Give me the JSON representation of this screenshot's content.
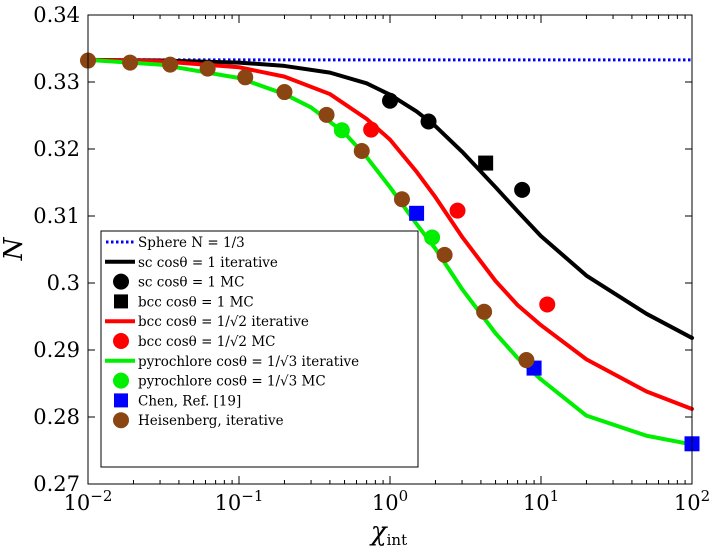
{
  "chart_data": {
    "type": "line",
    "xscale": "log",
    "xlim": [
      0.01,
      100
    ],
    "ylim": [
      0.27,
      0.34
    ],
    "xlabel": "χ",
    "xlabel_sub": "int",
    "ylabel": "N",
    "grid": false,
    "legend_position": "bottom-left",
    "x_ticks": [
      {
        "value": 0.01,
        "base": "10",
        "exp": "−2"
      },
      {
        "value": 0.1,
        "base": "10",
        "exp": "−1"
      },
      {
        "value": 1,
        "base": "10",
        "exp": "0"
      },
      {
        "value": 10,
        "base": "10",
        "exp": "1"
      },
      {
        "value": 100,
        "base": "10",
        "exp": "2"
      }
    ],
    "y_ticks": [
      {
        "value": 0.27,
        "label": "0.27"
      },
      {
        "value": 0.28,
        "label": "0.28"
      },
      {
        "value": 0.29,
        "label": "0.29"
      },
      {
        "value": 0.3,
        "label": "0.3"
      },
      {
        "value": 0.31,
        "label": "0.31"
      },
      {
        "value": 0.32,
        "label": "0.32"
      },
      {
        "value": 0.33,
        "label": "0.33"
      },
      {
        "value": 0.34,
        "label": "0.34"
      }
    ],
    "series": [
      {
        "name": "Sphere N = 1/3",
        "kind": "line",
        "style": "dotted",
        "color": "#0000ff",
        "x": [
          0.01,
          100
        ],
        "y": [
          0.3333,
          0.3333
        ]
      },
      {
        "name": "sc cosθ = 1 iterative",
        "kind": "line",
        "style": "solid",
        "color": "#000000",
        "x": [
          0.01,
          0.03,
          0.1,
          0.2,
          0.4,
          0.7,
          1,
          1.5,
          2,
          3,
          5,
          7,
          10,
          20,
          50,
          100
        ],
        "y": [
          0.3333,
          0.3332,
          0.3329,
          0.3324,
          0.3314,
          0.3298,
          0.3281,
          0.3256,
          0.3234,
          0.3196,
          0.3143,
          0.3107,
          0.307,
          0.3011,
          0.2954,
          0.2918
        ]
      },
      {
        "name": "sc cosθ = 1 MC",
        "kind": "marker",
        "marker": "circle",
        "color": "#000000",
        "x": [
          1.0,
          1.8,
          7.5
        ],
        "y": [
          0.3272,
          0.3241,
          0.3139
        ]
      },
      {
        "name": "bcc cosθ = 1 MC",
        "kind": "marker",
        "marker": "square",
        "color": "#000000",
        "x": [
          4.3
        ],
        "y": [
          0.3179
        ]
      },
      {
        "name": "bcc cosθ = 1/√2 iterative",
        "kind": "line",
        "style": "solid",
        "color": "#ff0000",
        "x": [
          0.01,
          0.03,
          0.1,
          0.2,
          0.4,
          0.7,
          1,
          1.5,
          2,
          3,
          5,
          7,
          10,
          20,
          50,
          100
        ],
        "y": [
          0.3333,
          0.3331,
          0.3322,
          0.3308,
          0.3282,
          0.3245,
          0.3214,
          0.3166,
          0.3128,
          0.3069,
          0.3003,
          0.2967,
          0.2937,
          0.2886,
          0.2838,
          0.2812
        ]
      },
      {
        "name": "bcc cosθ = 1/√2 MC",
        "kind": "marker",
        "marker": "circle",
        "color": "#ff0000",
        "x": [
          0.75,
          2.8,
          11
        ],
        "y": [
          0.3229,
          0.3108,
          0.2968
        ]
      },
      {
        "name": "pyrochlore cosθ = 1/√3 iterative",
        "kind": "line",
        "style": "solid",
        "color": "#00ee00",
        "x": [
          0.01,
          0.03,
          0.1,
          0.2,
          0.3,
          0.5,
          0.7,
          1,
          1.5,
          2,
          3,
          5,
          7,
          10,
          20,
          50,
          100
        ],
        "y": [
          0.3333,
          0.3326,
          0.3306,
          0.3282,
          0.3262,
          0.3224,
          0.3188,
          0.3143,
          0.3088,
          0.3051,
          0.2991,
          0.2925,
          0.2888,
          0.2856,
          0.2802,
          0.2772,
          0.2759
        ]
      },
      {
        "name": "pyrochlore cosθ = 1/√3 MC",
        "kind": "marker",
        "marker": "circle",
        "color": "#00ee00",
        "x": [
          0.48,
          1.9
        ],
        "y": [
          0.3228,
          0.3068
        ]
      },
      {
        "name": "Chen, Ref. [19]",
        "kind": "marker",
        "marker": "square",
        "color": "#0000ff",
        "x": [
          1.5,
          9,
          100
        ],
        "y": [
          0.3104,
          0.2873,
          0.276
        ]
      },
      {
        "name": "Heisenberg, iterative",
        "kind": "marker",
        "marker": "circle",
        "color": "#8b4513",
        "x": [
          0.01,
          0.019,
          0.035,
          0.062,
          0.11,
          0.2,
          0.38,
          0.65,
          1.2,
          2.3,
          4.2,
          8
        ],
        "y": [
          0.3332,
          0.3329,
          0.3326,
          0.332,
          0.3307,
          0.3285,
          0.3251,
          0.3197,
          0.3125,
          0.3042,
          0.2957,
          0.2885
        ]
      }
    ],
    "legend": [
      {
        "text": "Sphere N = 1/3",
        "color": "#0000ff",
        "symbol": "dotted"
      },
      {
        "text": "sc cosθ = 1 iterative",
        "color": "#000000",
        "symbol": "line"
      },
      {
        "text": "sc cosθ = 1 MC",
        "color": "#000000",
        "symbol": "circle"
      },
      {
        "text": "bcc cosθ = 1 MC",
        "color": "#000000",
        "symbol": "square"
      },
      {
        "text": "bcc cosθ = 1/√2 iterative",
        "color": "#ff0000",
        "symbol": "line"
      },
      {
        "text": "bcc cosθ = 1/√2 MC",
        "color": "#ff0000",
        "symbol": "circle"
      },
      {
        "text": "pyrochlore cosθ = 1/√3 iterative",
        "color": "#00ee00",
        "symbol": "line"
      },
      {
        "text": "pyrochlore cosθ = 1/√3 MC",
        "color": "#00ee00",
        "symbol": "circle"
      },
      {
        "text": "Chen, Ref. [19]",
        "color": "#0000ff",
        "symbol": "square"
      },
      {
        "text": "Heisenberg, iterative",
        "color": "#8b4513",
        "symbol": "circle"
      }
    ]
  }
}
